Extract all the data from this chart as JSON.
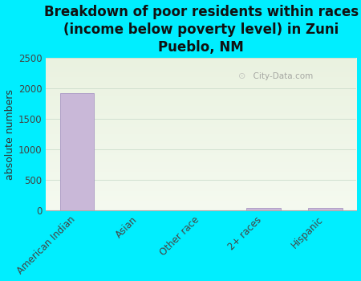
{
  "title": "Breakdown of poor residents within races\n(income below poverty level) in Zuni\nPueblo, NM",
  "categories": [
    "American Indian",
    "Asian",
    "Other race",
    "2+ races",
    "Hispanic"
  ],
  "values": [
    1930,
    0,
    0,
    45,
    45
  ],
  "bar_color": "#c9b8d8",
  "bar_edge_color": "#b0a0c8",
  "ylabel": "absolute numbers",
  "ylim": [
    0,
    2500
  ],
  "yticks": [
    0,
    500,
    1000,
    1500,
    2000,
    2500
  ],
  "bg_outer": "#00eeff",
  "bg_plot_top": "#eaf2e0",
  "bg_plot_bottom": "#f5faf0",
  "watermark": "City-Data.com",
  "title_fontsize": 12,
  "ylabel_fontsize": 9,
  "tick_fontsize": 8.5,
  "title_color": "#111111"
}
